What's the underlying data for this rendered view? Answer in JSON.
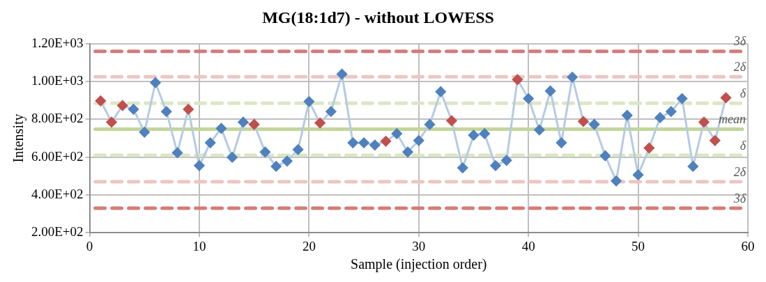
{
  "chart_data": {
    "type": "line",
    "title": "MG(18:1d7) - without LOWESS",
    "xlabel": "Sample (injection order)",
    "ylabel": "Intensity",
    "x": [
      1,
      2,
      3,
      4,
      5,
      6,
      7,
      8,
      9,
      10,
      11,
      12,
      13,
      14,
      15,
      16,
      17,
      18,
      19,
      20,
      21,
      22,
      23,
      24,
      25,
      26,
      27,
      28,
      29,
      30,
      31,
      32,
      33,
      34,
      35,
      36,
      37,
      38,
      39,
      40,
      41,
      42,
      43,
      44,
      45,
      46,
      47,
      48,
      49,
      50,
      51,
      52,
      53,
      54,
      55,
      56,
      57,
      58
    ],
    "series": [
      {
        "color": "#b4cbe4",
        "colors": [
          "#c0504d",
          "#c0504d",
          "#c0504d",
          "#4f81bd",
          "#4f81bd",
          "#4f81bd",
          "#4f81bd",
          "#4f81bd",
          "#c0504d",
          "#4f81bd",
          "#4f81bd",
          "#4f81bd",
          "#4f81bd",
          "#4f81bd",
          "#c0504d",
          "#4f81bd",
          "#4f81bd",
          "#4f81bd",
          "#4f81bd",
          "#4f81bd",
          "#c0504d",
          "#4f81bd",
          "#4f81bd",
          "#4f81bd",
          "#4f81bd",
          "#4f81bd",
          "#c0504d",
          "#4f81bd",
          "#4f81bd",
          "#4f81bd",
          "#4f81bd",
          "#4f81bd",
          "#c0504d",
          "#4f81bd",
          "#4f81bd",
          "#4f81bd",
          "#4f81bd",
          "#4f81bd",
          "#c0504d",
          "#4f81bd",
          "#4f81bd",
          "#4f81bd",
          "#4f81bd",
          "#4f81bd",
          "#c0504d",
          "#4f81bd",
          "#4f81bd",
          "#4f81bd",
          "#4f81bd",
          "#4f81bd",
          "#c0504d",
          "#4f81bd",
          "#4f81bd",
          "#4f81bd",
          "#4f81bd",
          "#c0504d",
          "#c0504d",
          "#c0504d"
        ],
        "values": [
          898,
          785,
          873,
          853,
          732,
          994,
          841,
          623,
          853,
          555,
          676,
          752,
          599,
          785,
          773,
          627,
          551,
          579,
          640,
          894,
          781,
          841,
          1039,
          676,
          676,
          664,
          684,
          724,
          627,
          688,
          773,
          946,
          793,
          543,
          716,
          724,
          555,
          583,
          1010,
          910,
          744,
          950,
          676,
          1023,
          789,
          773,
          607,
          474,
          821,
          506,
          648,
          809,
          841,
          910,
          551,
          785,
          688,
          914
        ]
      }
    ],
    "xlim": [
      0,
      60
    ],
    "xticks": [
      0,
      10,
      20,
      30,
      40,
      50,
      60
    ],
    "ylim": [
      200,
      1200
    ],
    "yticks": [
      {
        "value": 200,
        "label": "2.00E+02"
      },
      {
        "value": 400,
        "label": "4.00E+02"
      },
      {
        "value": 600,
        "label": "6.00E+02"
      },
      {
        "value": 800,
        "label": "8.00E+02"
      },
      {
        "value": 1000,
        "label": "1.00E+03"
      },
      {
        "value": 1200,
        "label": "1.20E+03"
      }
    ],
    "grid": true,
    "legend": false,
    "marker": "diamond",
    "ref_lines": [
      {
        "axis": "y",
        "value": 1160,
        "label": "3δ",
        "color": "#d47b79",
        "line_style": "dashed"
      },
      {
        "axis": "y",
        "value": 1025,
        "label": "2δ",
        "color": "#ecc5c4",
        "line_style": "dashed"
      },
      {
        "axis": "y",
        "value": 885,
        "label": "δ",
        "color": "#dbe6c4",
        "line_style": "dashed"
      },
      {
        "axis": "y",
        "value": 748,
        "label": "mean",
        "color": "#c3d69b",
        "line_style": "solid"
      },
      {
        "axis": "y",
        "value": 610,
        "label": "δ",
        "color": "#dbe6c4",
        "line_style": "dashed"
      },
      {
        "axis": "y",
        "value": 470,
        "label": "2δ",
        "color": "#ecc5c4",
        "line_style": "dashed"
      },
      {
        "axis": "y",
        "value": 330,
        "label": "3δ",
        "color": "#d47b79",
        "line_style": "dashed"
      }
    ]
  }
}
